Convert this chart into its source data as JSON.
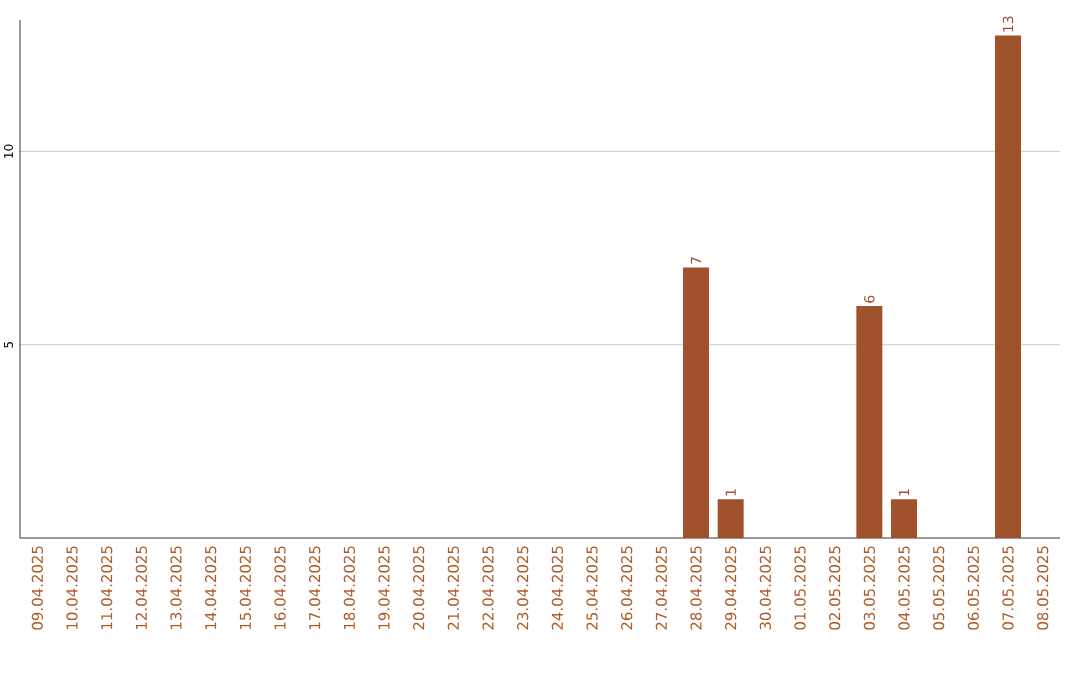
{
  "chart_data": {
    "type": "bar",
    "categories": [
      "09.04.2025",
      "10.04.2025",
      "11.04.2025",
      "12.04.2025",
      "13.04.2025",
      "14.04.2025",
      "15.04.2025",
      "16.04.2025",
      "17.04.2025",
      "18.04.2025",
      "19.04.2025",
      "20.04.2025",
      "21.04.2025",
      "22.04.2025",
      "23.04.2025",
      "24.04.2025",
      "25.04.2025",
      "26.04.2025",
      "27.04.2025",
      "28.04.2025",
      "29.04.2025",
      "30.04.2025",
      "01.05.2025",
      "02.05.2025",
      "03.05.2025",
      "04.05.2025",
      "05.05.2025",
      "06.05.2025",
      "07.05.2025",
      "08.05.2025"
    ],
    "values": [
      0,
      0,
      0,
      0,
      0,
      0,
      0,
      0,
      0,
      0,
      0,
      0,
      0,
      0,
      0,
      0,
      0,
      0,
      0,
      7,
      1,
      0,
      0,
      0,
      6,
      1,
      0,
      0,
      13,
      0
    ],
    "value_labels": [
      null,
      null,
      null,
      null,
      null,
      null,
      null,
      null,
      null,
      null,
      null,
      null,
      null,
      null,
      null,
      null,
      null,
      null,
      null,
      "7",
      "1",
      null,
      null,
      null,
      "6",
      "1",
      null,
      null,
      "13",
      null
    ],
    "color": "#a0522d",
    "ylim": [
      0,
      13.4
    ],
    "yticks": [
      5,
      10
    ],
    "grid": "y"
  }
}
